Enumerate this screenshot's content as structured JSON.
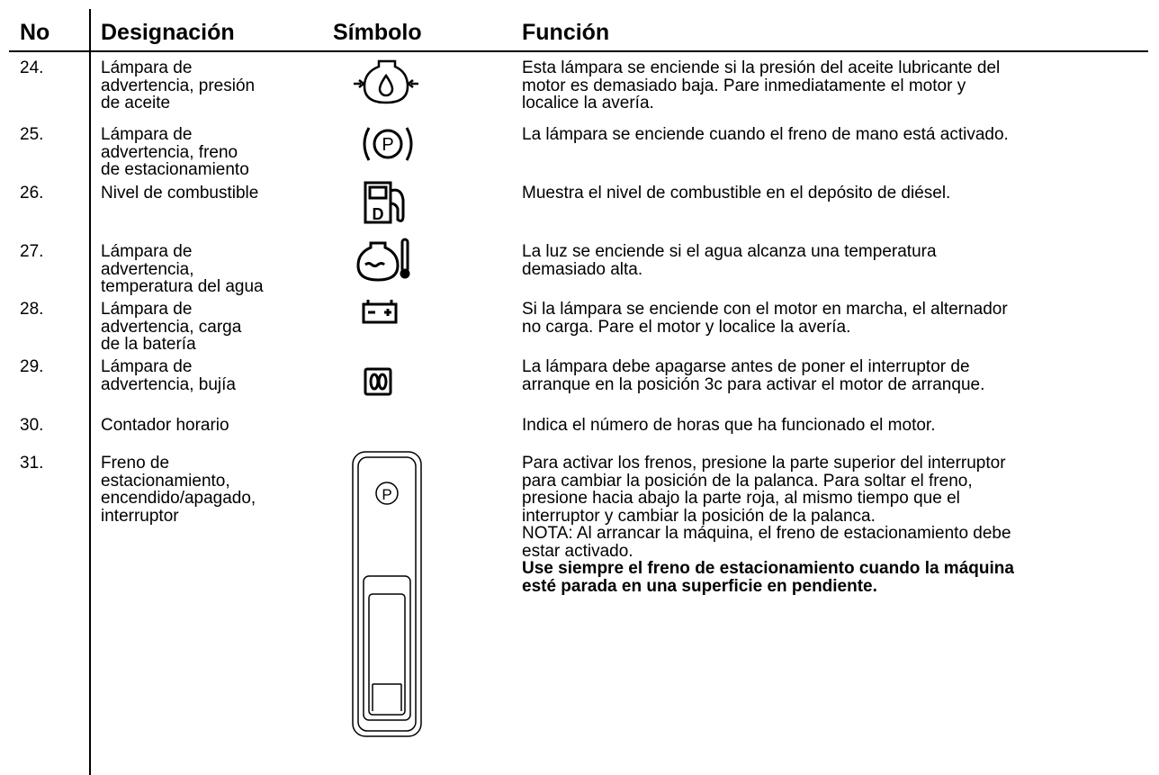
{
  "table": {
    "headers": [
      "No",
      "Designación",
      "Símbolo",
      "Función"
    ],
    "rows": [
      {
        "no": "24.",
        "designation": [
          "Lámpara de",
          "advertencia, presión",
          "de aceite"
        ],
        "function": [
          "Esta lámpara se enciende si la presión del aceite lubricante del",
          "motor es demasiado baja. Pare inmediatamente el motor y",
          "localice la avería."
        ]
      },
      {
        "no": "25.",
        "designation": [
          "Lámpara de",
          "advertencia, freno",
          "de estacionamiento"
        ],
        "function": [
          "La lámpara se enciende cuando el freno de mano está activado."
        ]
      },
      {
        "no": "26.",
        "designation": [
          "Nivel de combustible"
        ],
        "function": [
          "Muestra el nivel de combustible en el depósito de diésel."
        ]
      },
      {
        "no": "27.",
        "designation": [
          "Lámpara de",
          "advertencia,",
          "temperatura del agua"
        ],
        "function": [
          "La luz se enciende si el agua alcanza una temperatura",
          "demasiado alta."
        ]
      },
      {
        "no": "28.",
        "designation": [
          "Lámpara de",
          "advertencia, carga",
          "de la batería"
        ],
        "function": [
          "Si la lámpara se enciende con el motor en marcha, el alternador",
          "no carga.  Pare el motor y localice la avería."
        ]
      },
      {
        "no": "29.",
        "designation": [
          "Lámpara de",
          "advertencia, bujía"
        ],
        "function": [
          "La lámpara debe apagarse antes de poner el interruptor de",
          "arranque en la posición 3c para activar el motor de arranque."
        ]
      },
      {
        "no": "30.",
        "designation": [
          "Contador horario"
        ],
        "function": [
          "Indica el número de horas que ha funcionado el motor."
        ]
      },
      {
        "no": "31.",
        "designation": [
          "Freno de",
          "estacionamiento,",
          "encendido/apagado,",
          "interruptor"
        ],
        "function": [
          "Para activar los frenos, presione la parte superior del interruptor",
          "para cambiar la posición de la palanca. Para soltar el freno,",
          "presione hacia abajo la parte roja, al mismo tiempo que el",
          "interruptor y cambiar la posición de la palanca.",
          "NOTA: Al arrancar la máquina, el freno de estacionamiento debe",
          "estar activado."
        ],
        "function_bold": [
          "Use siempre el freno de estacionamiento cuando la máquina",
          "esté parada en una superficie en pendiente."
        ]
      }
    ]
  }
}
